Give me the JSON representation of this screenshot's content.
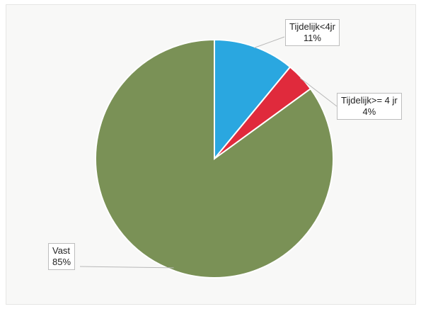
{
  "chart_data": {
    "type": "pie",
    "slices": [
      {
        "label": "Tijdelijk<4jr",
        "value": 11,
        "pct_label": "11%",
        "color": "#2aa7e0"
      },
      {
        "label": "Tijdelijk>= 4 jr",
        "value": 4,
        "pct_label": "4%",
        "color": "#e02a3c"
      },
      {
        "label": "Vast",
        "value": 85,
        "pct_label": "85%",
        "color": "#7a9156"
      }
    ],
    "start_angle": "12 o'clock",
    "direction": "clockwise",
    "legend": "none",
    "data_labels": "outside with leader lines"
  }
}
